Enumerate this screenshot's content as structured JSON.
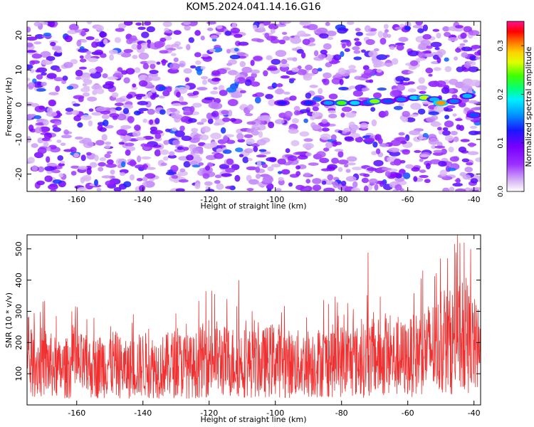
{
  "figure": {
    "title": "KOM5.2024.041.14.16.G16"
  },
  "chart_data": [
    {
      "type": "heatmap",
      "title": "KOM5.2024.041.14.16.G16",
      "xlabel": "Height of straight line (km)",
      "ylabel": "Frequency (Hz)",
      "xlim": [
        -175,
        -38
      ],
      "ylim": [
        -25,
        24
      ],
      "x_ticks": [
        -160,
        -140,
        -120,
        -100,
        -80,
        -60,
        -40
      ],
      "y_ticks": [
        -20,
        -10,
        0,
        10,
        20
      ],
      "colorbar": {
        "label": "Normalized spectral amplitude",
        "range": [
          0.0,
          0.35
        ],
        "ticks": [
          0.0,
          0.1,
          0.2,
          0.3
        ],
        "colormap": "white-purple-blue-cyan-green-yellow-red-magenta"
      },
      "description_of_values": "background spectral amplitude mostly 0.02-0.12 (purple/blue); a signal band near 0 Hz from about -85 km to -38 km with peaks ~0.2-0.3",
      "signal_band": [
        {
          "x": -98,
          "y": 0.5,
          "amp": 0.12
        },
        {
          "x": -90,
          "y": 0.5,
          "amp": 0.13
        },
        {
          "x": -84,
          "y": 0.5,
          "amp": 0.16
        },
        {
          "x": -80,
          "y": 0.5,
          "amp": 0.24
        },
        {
          "x": -76,
          "y": 0.5,
          "amp": 0.18
        },
        {
          "x": -72,
          "y": 0.5,
          "amp": 0.14
        },
        {
          "x": -70,
          "y": 1.0,
          "amp": 0.25
        },
        {
          "x": -66,
          "y": 1.0,
          "amp": 0.14
        },
        {
          "x": -62,
          "y": 1.5,
          "amp": 0.15
        },
        {
          "x": -58,
          "y": 2.0,
          "amp": 0.18
        },
        {
          "x": -55,
          "y": 2.0,
          "amp": 0.26
        },
        {
          "x": -52,
          "y": 1.5,
          "amp": 0.17
        },
        {
          "x": -50,
          "y": 0.5,
          "amp": 0.3
        },
        {
          "x": -46,
          "y": 1.0,
          "amp": 0.15
        },
        {
          "x": -42,
          "y": 2.5,
          "amp": 0.17
        },
        {
          "x": -40,
          "y": -3.0,
          "amp": 0.14
        }
      ]
    },
    {
      "type": "line",
      "xlabel": "Height of straight line (km)",
      "ylabel": "SNR (10 * v/v)",
      "xlim": [
        -175,
        -38
      ],
      "ylim": [
        0,
        545
      ],
      "x_ticks": [
        -160,
        -140,
        -120,
        -100,
        -80,
        -60,
        -40
      ],
      "y_ticks": [
        100,
        200,
        300,
        400,
        500
      ],
      "series": [
        {
          "color": "#f03030",
          "x": [
            -175,
            -170,
            -165,
            -160,
            -155,
            -150,
            -145,
            -140,
            -135,
            -130,
            -125,
            -120,
            -115,
            -110,
            -105,
            -100,
            -95,
            -90,
            -85,
            -80,
            -75,
            -70,
            -65,
            -60,
            -55,
            -50,
            -45,
            -40,
            -38
          ],
          "y": [
            130,
            150,
            120,
            140,
            125,
            150,
            120,
            140,
            130,
            145,
            130,
            170,
            150,
            150,
            140,
            160,
            140,
            145,
            150,
            155,
            150,
            165,
            160,
            160,
            190,
            205,
            230,
            205,
            170
          ]
        }
      ],
      "peaks": [
        {
          "x": -121,
          "y": 365
        },
        {
          "x": -111,
          "y": 400
        },
        {
          "x": -72,
          "y": 488
        },
        {
          "x": -56,
          "y": 405
        },
        {
          "x": -48,
          "y": 470
        },
        {
          "x": -45,
          "y": 545
        },
        {
          "x": -43,
          "y": 520
        },
        {
          "x": -41,
          "y": 500
        }
      ]
    }
  ]
}
